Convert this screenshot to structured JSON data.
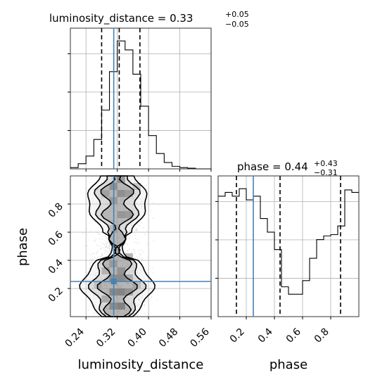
{
  "chart_data": [
    {
      "type": "histogram",
      "panel": "luminosity_distance marginal",
      "title": {
        "param": "luminosity_distance",
        "median": "0.33",
        "plus": "+0.05",
        "minus": "−0.05"
      },
      "bin_edges": [
        0.2,
        0.22,
        0.24,
        0.26,
        0.28,
        0.3,
        0.32,
        0.34,
        0.36,
        0.38,
        0.4,
        0.42,
        0.44,
        0.46,
        0.48,
        0.5,
        0.52,
        0.54,
        0.56
      ],
      "counts": [
        0.01,
        0.04,
        0.1,
        0.23,
        0.46,
        0.76,
        1.0,
        0.93,
        0.74,
        0.49,
        0.26,
        0.12,
        0.05,
        0.02,
        0.01,
        0.005,
        0.0,
        0.0
      ],
      "quantiles": [
        0.28,
        0.325,
        0.378
      ],
      "truth": 0.311,
      "xlim": [
        0.2,
        0.56
      ],
      "grid": true
    },
    {
      "type": "heatmap",
      "panel": "phase vs luminosity_distance",
      "xlabel": "luminosity_distance",
      "ylabel": "phase",
      "xlim": [
        0.2,
        0.56
      ],
      "ylim": [
        0.0,
        1.0
      ],
      "x_ticks": [
        "0.24",
        "0.32",
        "0.40",
        "0.48",
        "0.56"
      ],
      "y_ticks": [
        "0.2",
        "0.4",
        "0.6",
        "0.8"
      ],
      "contour_levels": [
        0.39,
        0.86,
        0.99
      ],
      "truth": {
        "x": 0.311,
        "y": 0.25
      },
      "grid": true
    },
    {
      "type": "histogram",
      "panel": "phase marginal",
      "title": {
        "param": "phase",
        "median": "0.44",
        "plus": "+0.43",
        "minus": "−0.31"
      },
      "bin_edges": [
        0.0,
        0.05,
        0.1,
        0.15,
        0.2,
        0.25,
        0.3,
        0.35,
        0.4,
        0.45,
        0.5,
        0.55,
        0.6,
        0.65,
        0.7,
        0.75,
        0.8,
        0.85,
        0.9,
        0.95,
        1.0
      ],
      "counts": [
        0.97,
        1.0,
        0.97,
        1.03,
        0.94,
        0.97,
        0.79,
        0.68,
        0.54,
        0.24,
        0.18,
        0.18,
        0.29,
        0.47,
        0.62,
        0.65,
        0.66,
        0.73,
        1.02,
        1.0
      ],
      "quantiles": [
        0.13,
        0.44,
        0.87
      ],
      "truth": 0.25,
      "xlim": [
        0.0,
        1.0
      ],
      "x_ticks": [
        "0.2",
        "0.4",
        "0.6",
        "0.8"
      ],
      "xlabel": "phase",
      "grid": true
    }
  ],
  "colors": {
    "truth": "#4682b4",
    "line": "#000000",
    "grid": "#b0b0b0",
    "points": "#9a9a9a"
  }
}
